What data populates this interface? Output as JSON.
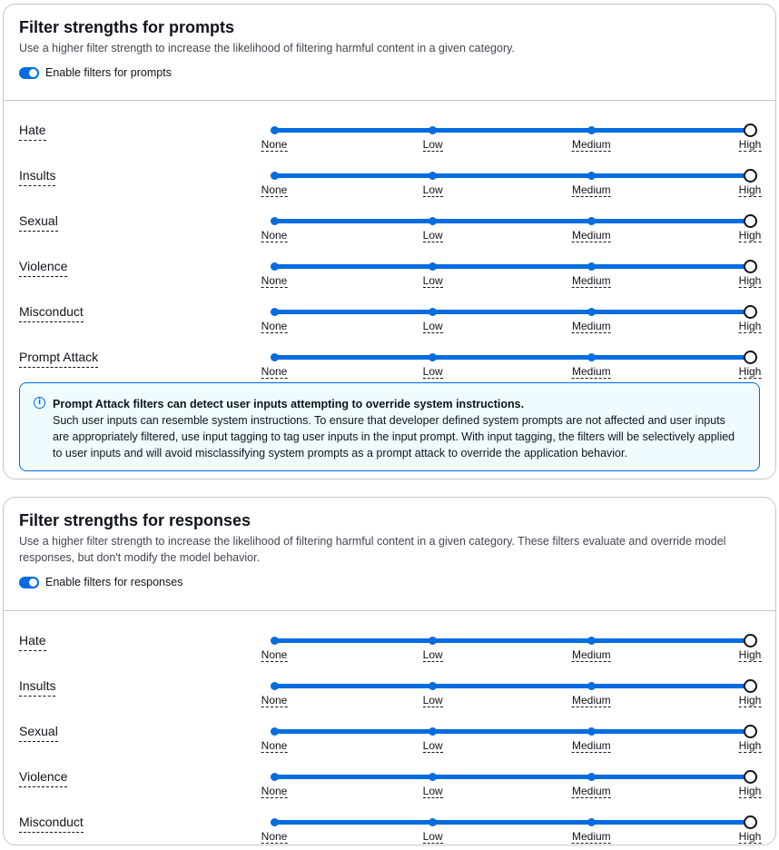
{
  "prompts": {
    "title": "Filter strengths for prompts",
    "description": "Use a higher filter strength to increase the likelihood of filtering harmful content in a given category.",
    "toggle_label": "Enable filters for prompts",
    "toggle_on": true,
    "filters": [
      {
        "label": "Hate",
        "value": "High"
      },
      {
        "label": "Insults",
        "value": "High"
      },
      {
        "label": "Sexual",
        "value": "High"
      },
      {
        "label": "Violence",
        "value": "High"
      },
      {
        "label": "Misconduct",
        "value": "High"
      },
      {
        "label": "Prompt Attack",
        "value": "High"
      }
    ],
    "info": {
      "title": "Prompt Attack filters can detect user inputs attempting to override system instructions.",
      "text": "Such user inputs can resemble system instructions. To ensure that developer defined system prompts are not affected and user inputs are appropriately filtered, use input tagging to tag user inputs in the input prompt. With input tagging, the filters will be selectively applied to user inputs and will avoid misclassifying system prompts as a prompt attack to override the application behavior."
    }
  },
  "responses": {
    "title": "Filter strengths for responses",
    "description": "Use a higher filter strength to increase the likelihood of filtering harmful content in a given category. These filters evaluate and override model responses, but don't modify the model behavior.",
    "toggle_label": "Enable filters for responses",
    "toggle_on": true,
    "filters": [
      {
        "label": "Hate",
        "value": "High"
      },
      {
        "label": "Insults",
        "value": "High"
      },
      {
        "label": "Sexual",
        "value": "High"
      },
      {
        "label": "Violence",
        "value": "High"
      },
      {
        "label": "Misconduct",
        "value": "High"
      }
    ]
  },
  "levels": [
    "None",
    "Low",
    "Medium",
    "High"
  ],
  "colors": {
    "accent": "#006ce0",
    "info_bg": "#f0fbff",
    "border": "#c6c6cd"
  }
}
